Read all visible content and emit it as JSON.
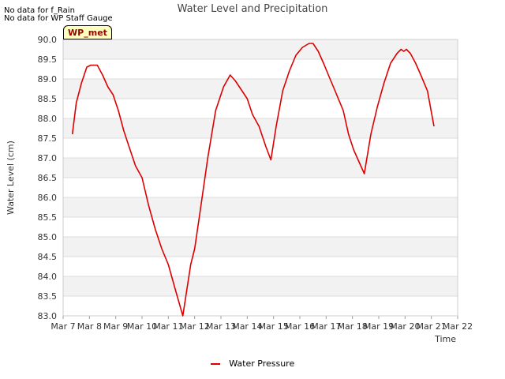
{
  "no_data_notes": [
    "No data for f_Rain",
    "No data for WP Staff Gauge"
  ],
  "station_tag": "WP_met",
  "legend": {
    "label": "Water Pressure"
  },
  "colors": {
    "series": "#dd0000",
    "band": "#f2f2f2",
    "grid": "#dcdcdc",
    "axis": "#cccccc"
  },
  "chart_data": {
    "type": "line",
    "title": "Water Level and Precipitation",
    "xlabel": "Time",
    "ylabel": "Water Level (cm)",
    "ylim": [
      83.0,
      90.0
    ],
    "yticks": [
      "83.0",
      "83.5",
      "84.0",
      "84.5",
      "85.0",
      "85.5",
      "86.0",
      "86.5",
      "87.0",
      "87.5",
      "88.0",
      "88.5",
      "89.0",
      "89.5",
      "90.0"
    ],
    "xlim": [
      7,
      22
    ],
    "xticks": [
      {
        "v": 7,
        "label": "Mar 7"
      },
      {
        "v": 8,
        "label": "Mar 8"
      },
      {
        "v": 9,
        "label": "Mar 9"
      },
      {
        "v": 10,
        "label": "Mar 10"
      },
      {
        "v": 11,
        "label": "Mar 11"
      },
      {
        "v": 12,
        "label": "Mar 12"
      },
      {
        "v": 13,
        "label": "Mar 13"
      },
      {
        "v": 14,
        "label": "Mar 14"
      },
      {
        "v": 15,
        "label": "Mar 15"
      },
      {
        "v": 16,
        "label": "Mar 16"
      },
      {
        "v": 17,
        "label": "Mar 17"
      },
      {
        "v": 18,
        "label": "Mar 18"
      },
      {
        "v": 19,
        "label": "Mar 19"
      },
      {
        "v": 20,
        "label": "Mar 20"
      },
      {
        "v": 21,
        "label": "Mar 21"
      },
      {
        "v": 22,
        "label": "Mar 22"
      }
    ],
    "grid": true,
    "legend_position": "bottom-center",
    "series": [
      {
        "name": "Water Pressure",
        "x": [
          7.35,
          7.5,
          7.7,
          7.9,
          8.05,
          8.3,
          8.5,
          8.7,
          8.9,
          9.1,
          9.3,
          9.5,
          9.75,
          10.0,
          10.25,
          10.5,
          10.75,
          11.0,
          11.25,
          11.55,
          11.85,
          12.0,
          12.2,
          12.5,
          12.8,
          13.1,
          13.35,
          13.55,
          13.8,
          14.0,
          14.2,
          14.45,
          14.7,
          14.9,
          15.1,
          15.35,
          15.6,
          15.85,
          16.1,
          16.35,
          16.5,
          16.7,
          16.9,
          17.15,
          17.4,
          17.65,
          17.85,
          18.05,
          18.25,
          18.45,
          18.7,
          18.95,
          19.2,
          19.45,
          19.7,
          19.85,
          19.95,
          20.05,
          20.2,
          20.4,
          20.6,
          20.85,
          21.1
        ],
        "y": [
          87.6,
          88.4,
          88.9,
          89.3,
          89.35,
          89.35,
          89.1,
          88.8,
          88.6,
          88.2,
          87.7,
          87.3,
          86.8,
          86.5,
          85.8,
          85.2,
          84.7,
          84.3,
          83.7,
          83.0,
          84.3,
          84.7,
          85.6,
          87.0,
          88.2,
          88.8,
          89.1,
          88.95,
          88.7,
          88.5,
          88.1,
          87.8,
          87.3,
          86.95,
          87.8,
          88.7,
          89.2,
          89.6,
          89.8,
          89.9,
          89.9,
          89.7,
          89.4,
          89.0,
          88.6,
          88.2,
          87.6,
          87.2,
          86.9,
          86.6,
          87.6,
          88.3,
          88.9,
          89.4,
          89.65,
          89.75,
          89.7,
          89.75,
          89.65,
          89.4,
          89.1,
          88.7,
          87.8
        ]
      }
    ]
  }
}
